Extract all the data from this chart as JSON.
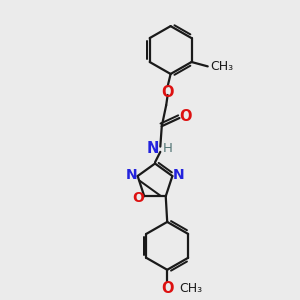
{
  "bg_color": "#ebebeb",
  "bond_color": "#1a1a1a",
  "N_color": "#2222dd",
  "O_color": "#dd1111",
  "H_color": "#557777",
  "line_width": 1.6,
  "font_size": 10.5,
  "figsize": [
    3.0,
    3.0
  ],
  "dpi": 100,
  "xlim": [
    0,
    10
  ],
  "ylim": [
    0,
    10
  ]
}
